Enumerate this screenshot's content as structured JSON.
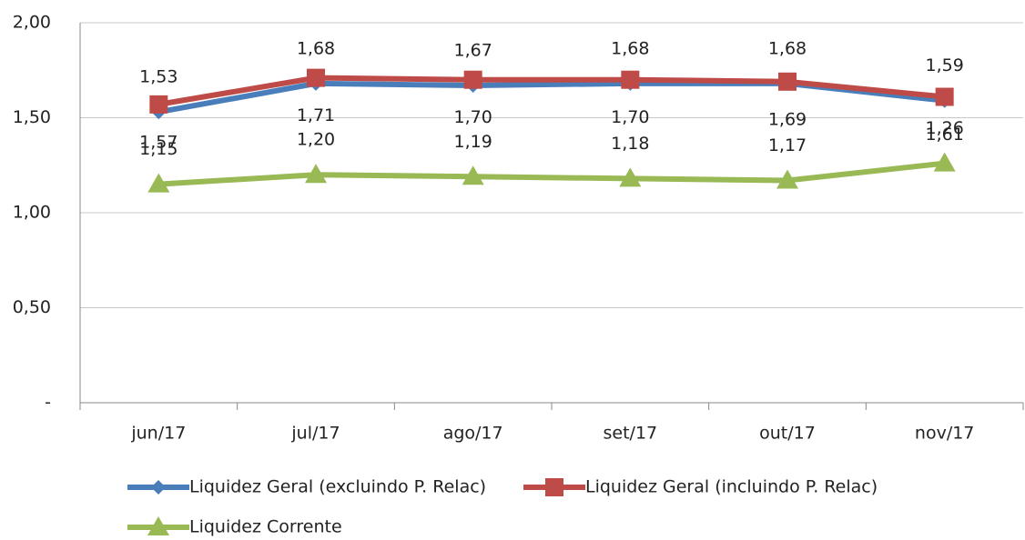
{
  "chart_data": {
    "type": "line",
    "categories": [
      "jun/17",
      "jul/17",
      "ago/17",
      "set/17",
      "out/17",
      "nov/17"
    ],
    "series": [
      {
        "name": "Liquidez Geral (excluindo P. Relac)",
        "color": "#4a7ebb",
        "marker": "diamond",
        "values": [
          1.53,
          1.68,
          1.67,
          1.68,
          1.68,
          1.59
        ],
        "value_labels": [
          "1,53",
          "1,68",
          "1,67",
          "1,68",
          "1,68",
          "1,59"
        ]
      },
      {
        "name": "Liquidez Geral (incluindo P. Relac)",
        "color": "#be4b48",
        "marker": "square",
        "values": [
          1.57,
          1.71,
          1.7,
          1.7,
          1.69,
          1.61
        ],
        "value_labels": [
          "1,57",
          "1,71",
          "1,70",
          "1,70",
          "1,69",
          "1,61"
        ]
      },
      {
        "name": "Liquidez Corrente",
        "color": "#98b954",
        "marker": "triangle",
        "values": [
          1.15,
          1.2,
          1.19,
          1.18,
          1.17,
          1.26
        ],
        "value_labels": [
          "1,15",
          "1,20",
          "1,19",
          "1,18",
          "1,17",
          "1,26"
        ]
      }
    ],
    "ylim": [
      0,
      2
    ],
    "yticks": [
      {
        "value": 0,
        "label": "-"
      },
      {
        "value": 0.5,
        "label": "0,50"
      },
      {
        "value": 1,
        "label": "1,00"
      },
      {
        "value": 1.5,
        "label": "1,50"
      },
      {
        "value": 2,
        "label": "2,00"
      }
    ],
    "grid": true
  }
}
